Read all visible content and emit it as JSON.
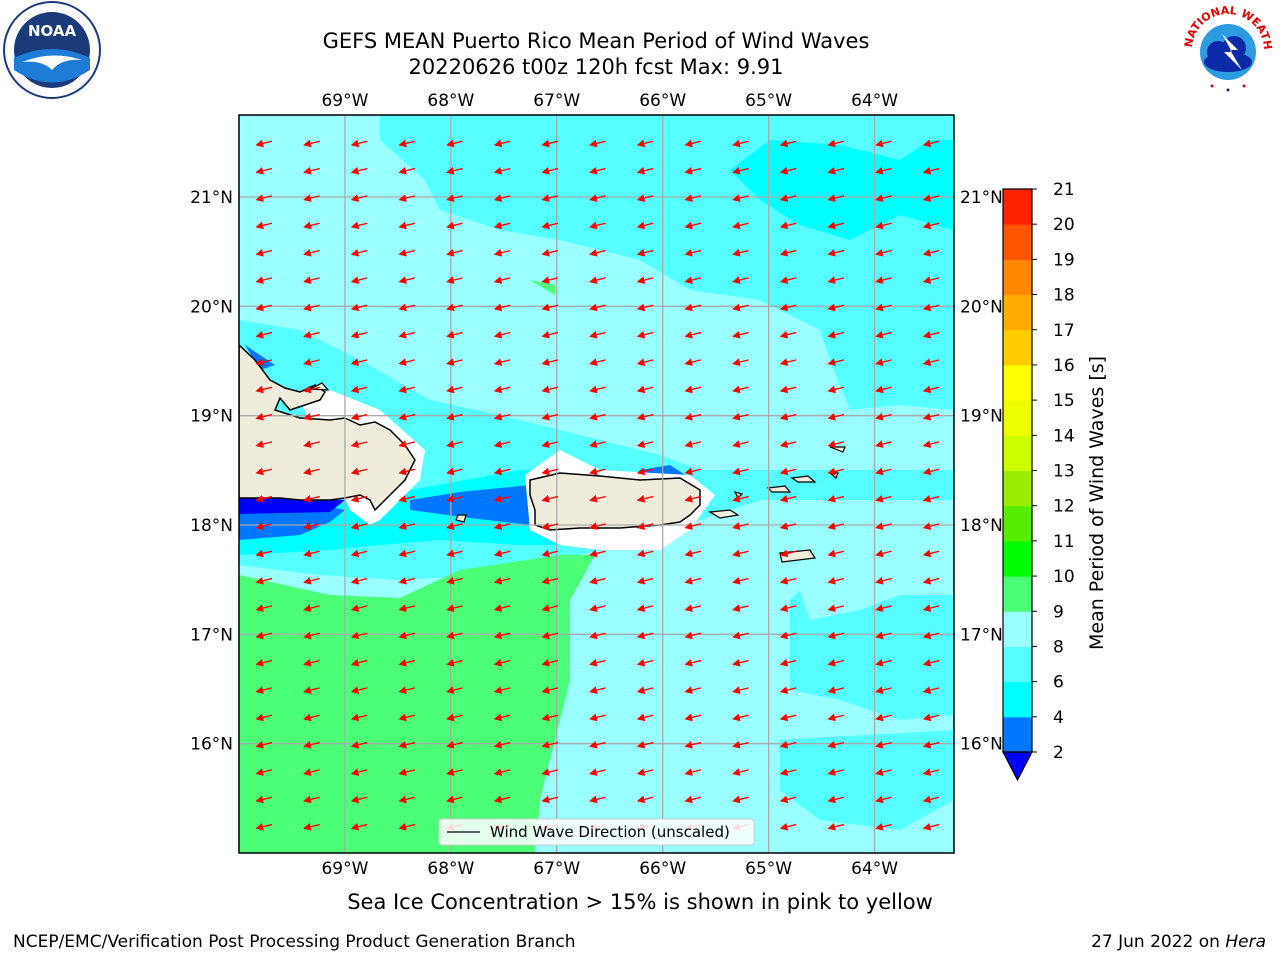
{
  "title": {
    "line1": "GEFS MEAN Puerto Rico Mean Period of Wind Waves",
    "line2": "20220626 t00z 120h fcst   Max: 9.91"
  },
  "map": {
    "lon_range": [
      -70.0,
      -63.25
    ],
    "lat_range": [
      15.0,
      21.75
    ],
    "lon_ticks": [
      {
        "value": -69,
        "label": "69°W"
      },
      {
        "value": -68,
        "label": "68°W"
      },
      {
        "value": -67,
        "label": "67°W"
      },
      {
        "value": -66,
        "label": "66°W"
      },
      {
        "value": -65,
        "label": "65°W"
      },
      {
        "value": -64,
        "label": "64°W"
      }
    ],
    "lat_ticks": [
      {
        "value": 21,
        "label": "21°N"
      },
      {
        "value": 20,
        "label": "20°N"
      },
      {
        "value": 19,
        "label": "19°N"
      },
      {
        "value": 18,
        "label": "18°N"
      },
      {
        "value": 17,
        "label": "17°N"
      },
      {
        "value": 16,
        "label": "16°N"
      }
    ],
    "grid": true,
    "legend": {
      "label": "Wind Wave Direction (unscaled)",
      "placement": "bottom-center"
    },
    "arrow_color": "#ff0000",
    "land_color": "#efecdc",
    "coast_color": "#000000"
  },
  "colorbar": {
    "label": "Mean Period of Wind Waves [s]",
    "extend": "min",
    "under_color": "#0000ff",
    "levels": [
      {
        "value": 2,
        "label": "2"
      },
      {
        "value": 4,
        "label": "4"
      },
      {
        "value": 6,
        "label": "6"
      },
      {
        "value": 8,
        "label": "8"
      },
      {
        "value": 9,
        "label": "9"
      },
      {
        "value": 10,
        "label": "10"
      },
      {
        "value": 11,
        "label": "11"
      },
      {
        "value": 12,
        "label": "12"
      },
      {
        "value": 13,
        "label": "13"
      },
      {
        "value": 14,
        "label": "14"
      },
      {
        "value": 15,
        "label": "15"
      },
      {
        "value": 16,
        "label": "16"
      },
      {
        "value": 17,
        "label": "17"
      },
      {
        "value": 18,
        "label": "18"
      },
      {
        "value": 19,
        "label": "19"
      },
      {
        "value": 20,
        "label": "20"
      },
      {
        "value": 21,
        "label": "21"
      }
    ],
    "colors": [
      "#0077ff",
      "#00ffff",
      "#55ffff",
      "#99ffff",
      "#4bff77",
      "#00ff00",
      "#55ee00",
      "#99ee00",
      "#ccff00",
      "#eeff00",
      "#ffff00",
      "#ffcc00",
      "#ffaa00",
      "#ff8800",
      "#ff5500",
      "#ff2200"
    ]
  },
  "chart_data": {
    "type": "heatmap",
    "title": "GEFS MEAN Puerto Rico Mean Period of Wind Waves",
    "variable": "Mean Period of Wind Waves [s]",
    "max": 9.91,
    "wind_wave_direction": "toward west, slightly south-west",
    "regions": [
      {
        "area": "southwest Caribbean south of Hispaniola",
        "period_range": [
          9,
          10
        ]
      },
      {
        "area": "north Atlantic, central",
        "period_range": [
          8,
          9
        ]
      },
      {
        "area": "northeast Atlantic",
        "period_range": [
          6,
          8
        ]
      },
      {
        "area": "Mona Passage channel",
        "period_range": [
          2,
          6
        ]
      },
      {
        "area": "southeast Caribbean",
        "period_range": [
          8,
          9
        ]
      }
    ]
  },
  "subtitle": "Sea Ice Concentration > 15% is shown in pink to yellow",
  "footer": {
    "left": "NCEP/EMC/Verification Post Processing Product Generation Branch",
    "right_date": "27 Jun 2022 on ",
    "right_host": "Hera"
  },
  "logos": {
    "left": {
      "icon": "noaa-logo",
      "text": "NOAA"
    },
    "right": {
      "icon": "nws-logo",
      "text": "NATIONAL WEATHER SERVICE"
    }
  }
}
